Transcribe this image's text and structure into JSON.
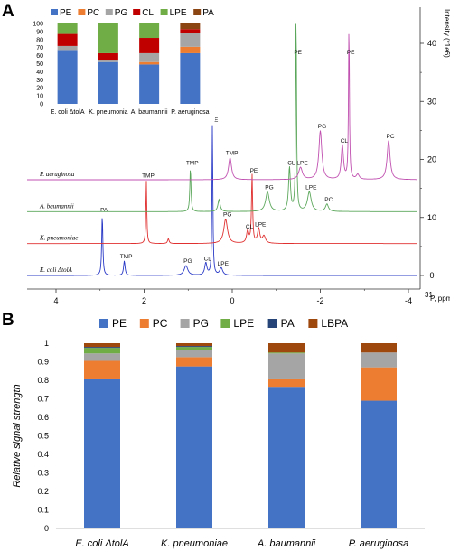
{
  "panels": {
    "a_letter": "A",
    "b_letter": "B"
  },
  "spectra": {
    "x_tick_labels": [
      "4",
      "2",
      "0",
      "-2",
      "-4"
    ],
    "y_tick_labels": [
      "0",
      "10",
      "20",
      "30",
      "40"
    ],
    "x_unit_superscript": "31",
    "x_unit_text": "P, ppm",
    "y_axis_label": "Intensity (*1e6)",
    "traces": [
      {
        "name": "E. coli ΔtolA",
        "color": "#2a3ac6",
        "peaks": [
          {
            "ppm": 2.95,
            "h": 25,
            "w": 0.015,
            "label": "PA"
          },
          {
            "ppm": 2.45,
            "h": 6,
            "w": 0.02,
            "label": "TMP"
          },
          {
            "ppm": 1.05,
            "h": 4,
            "w": 0.05,
            "label": "PG"
          },
          {
            "ppm": 0.6,
            "h": 5,
            "w": 0.03,
            "label": "CL"
          },
          {
            "ppm": 0.45,
            "h": 62,
            "w": 0.012,
            "label": "PE"
          },
          {
            "ppm": 0.25,
            "h": 3,
            "w": 0.04,
            "label": "LPE"
          }
        ]
      },
      {
        "name": "K. pneumoniae",
        "color": "#e03030",
        "peaks": [
          {
            "ppm": 1.95,
            "h": 26,
            "w": 0.012,
            "label": "TMP"
          },
          {
            "ppm": 1.45,
            "h": 2,
            "w": 0.02,
            "label": ""
          },
          {
            "ppm": 0.15,
            "h": 10,
            "w": 0.05,
            "label": "PG"
          },
          {
            "ppm": -0.35,
            "h": 5,
            "w": 0.03,
            "label": "CL"
          },
          {
            "ppm": -0.45,
            "h": 28,
            "w": 0.015,
            "label": "PE"
          },
          {
            "ppm": -0.6,
            "h": 6,
            "w": 0.03,
            "label": "LPE"
          },
          {
            "ppm": -0.72,
            "h": 3,
            "w": 0.04,
            "label": ""
          }
        ]
      },
      {
        "name": "A. baumannii",
        "color": "#5aa65a",
        "peaks": [
          {
            "ppm": 0.95,
            "h": 18,
            "w": 0.015,
            "label": "TMP"
          },
          {
            "ppm": 0.3,
            "h": 5,
            "w": 0.03,
            "label": ""
          },
          {
            "ppm": -0.8,
            "h": 8,
            "w": 0.05,
            "label": "PG"
          },
          {
            "ppm": -1.3,
            "h": 18,
            "w": 0.025,
            "label": "CL"
          },
          {
            "ppm": -1.45,
            "h": 84,
            "w": 0.012,
            "label": "PE"
          },
          {
            "ppm": -1.75,
            "h": 8,
            "w": 0.05,
            "label": "LPE"
          },
          {
            "ppm": -2.15,
            "h": 3,
            "w": 0.04,
            "label": "PC"
          }
        ]
      },
      {
        "name": "P. aeruginosa",
        "color": "#c050b0",
        "peaks": [
          {
            "ppm": 0.05,
            "h": 9,
            "w": 0.04,
            "label": "TMP"
          },
          {
            "ppm": -2.0,
            "h": 20,
            "w": 0.04,
            "label": "PG"
          },
          {
            "ppm": -2.5,
            "h": 14,
            "w": 0.03,
            "label": "CL"
          },
          {
            "ppm": -2.65,
            "h": 65,
            "w": 0.012,
            "label": "PE"
          },
          {
            "ppm": -2.85,
            "h": 2,
            "w": 0.04,
            "label": ""
          },
          {
            "ppm": -3.55,
            "h": 16,
            "w": 0.04,
            "label": "PC"
          },
          {
            "ppm": -1.55,
            "h": 5,
            "w": 0.05,
            "label": "LPE"
          }
        ]
      }
    ]
  },
  "inset": {
    "categories": [
      "E. coli ΔtolA",
      "K. pneumonia",
      "A. baumannii",
      "P. aeruginosa"
    ],
    "y_tick_labels": [
      "0",
      "10",
      "20",
      "30",
      "40",
      "50",
      "60",
      "70",
      "80",
      "90",
      "100"
    ],
    "ylim": [
      0,
      100
    ],
    "series": [
      {
        "name": "PE",
        "color": "#4472c4",
        "values": [
          67,
          52,
          49,
          63
        ]
      },
      {
        "name": "PC",
        "color": "#ed7d31",
        "values": [
          0,
          0,
          3,
          8
        ]
      },
      {
        "name": "PG",
        "color": "#a5a5a5",
        "values": [
          5,
          3,
          11,
          17
        ]
      },
      {
        "name": "CL",
        "color": "#c00000",
        "values": [
          15,
          8,
          19,
          5
        ]
      },
      {
        "name": "LPE",
        "color": "#70ad47",
        "values": [
          13,
          37,
          18,
          0
        ]
      },
      {
        "name": "PA",
        "color": "#8b4513",
        "values": [
          0,
          0,
          0,
          7
        ]
      }
    ]
  },
  "chart_data": {
    "type": "bar",
    "stacked": true,
    "categories": [
      "E. coli ΔtolA",
      "K. pneumoniae",
      "A. baumannii",
      "P. aeruginosa"
    ],
    "ylabel": "Relative signal strength",
    "ylim": [
      0,
      1
    ],
    "y_tick_labels": [
      "0",
      "0.1",
      "0.2",
      "0.3",
      "0.4",
      "0.5",
      "0.6",
      "0.7",
      "0.8",
      "0.9",
      "1"
    ],
    "legend_position": "top",
    "series": [
      {
        "name": "PE",
        "color": "#4472c4",
        "values": [
          0.805,
          0.875,
          0.765,
          0.69
        ]
      },
      {
        "name": "PC",
        "color": "#ed7d31",
        "values": [
          0.1,
          0.05,
          0.04,
          0.18
        ]
      },
      {
        "name": "PG",
        "color": "#a5a5a5",
        "values": [
          0.04,
          0.04,
          0.14,
          0.08
        ]
      },
      {
        "name": "LPE",
        "color": "#70ad47",
        "values": [
          0.03,
          0.015,
          0.005,
          0.0
        ]
      },
      {
        "name": "PA",
        "color": "#264478",
        "values": [
          0.005,
          0.005,
          0.0,
          0.0
        ]
      },
      {
        "name": "LBPA",
        "color": "#9e480e",
        "values": [
          0.02,
          0.015,
          0.05,
          0.05
        ]
      }
    ]
  }
}
